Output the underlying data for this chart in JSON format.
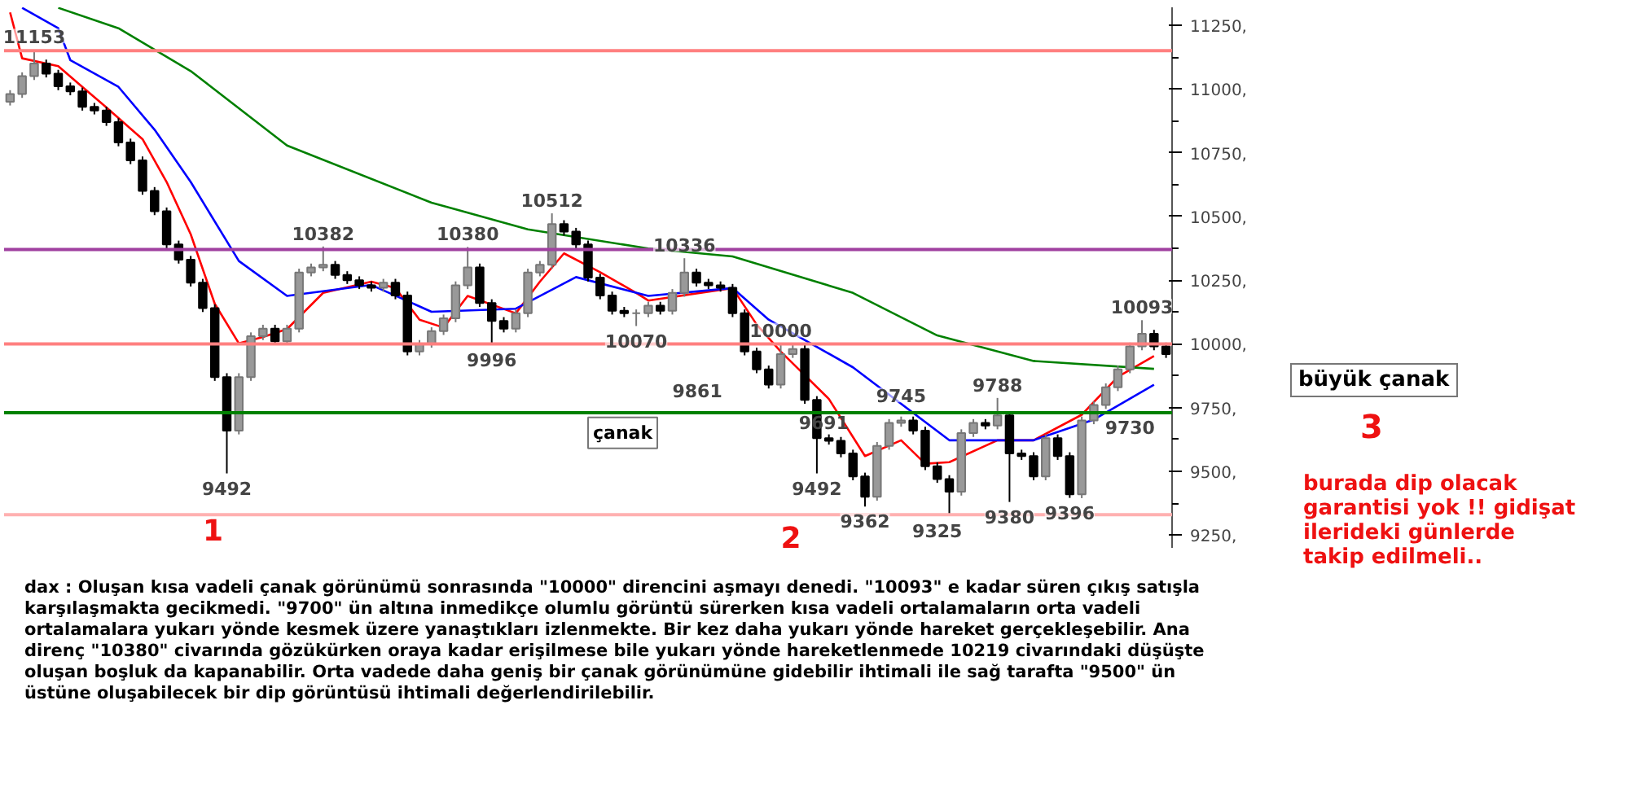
{
  "chart_data": {
    "type": "candlestick",
    "tick_labels": "y",
    "grid": false,
    "categories": [
      null,
      null,
      null,
      null,
      null,
      null,
      null,
      null,
      null,
      null,
      null,
      null,
      null,
      null,
      null,
      null,
      null,
      null,
      null,
      null,
      null,
      null,
      null,
      null,
      null,
      null,
      null,
      null,
      null,
      null,
      null,
      null,
      null,
      null,
      null,
      null,
      null,
      null,
      null,
      null,
      null,
      null,
      null,
      null,
      null,
      null,
      null,
      null,
      null,
      null,
      null,
      null,
      null,
      null,
      null,
      null,
      null,
      null,
      null,
      null,
      null,
      null,
      null,
      null,
      null,
      null,
      null,
      null,
      null,
      null,
      null,
      null,
      null,
      null,
      null,
      null,
      null,
      null,
      null,
      null,
      null,
      null,
      null,
      null,
      null,
      null,
      null,
      null,
      null,
      null,
      null,
      null,
      null,
      null,
      null,
      null,
      null
    ],
    "ohlc": [
      [
        10950,
        10995,
        10935,
        10980
      ],
      [
        10980,
        11065,
        10965,
        11050
      ],
      [
        11050,
        11153,
        11035,
        11100
      ],
      [
        11100,
        11115,
        11045,
        11060
      ],
      [
        11060,
        11075,
        10995,
        11010
      ],
      [
        11010,
        11025,
        10975,
        10990
      ],
      [
        10990,
        11005,
        10915,
        10930
      ],
      [
        10930,
        10945,
        10900,
        10915
      ],
      [
        10915,
        10930,
        10855,
        10870
      ],
      [
        10870,
        10885,
        10775,
        10790
      ],
      [
        10790,
        10805,
        10705,
        10720
      ],
      [
        10720,
        10735,
        10585,
        10600
      ],
      [
        10600,
        10615,
        10505,
        10520
      ],
      [
        10520,
        10535,
        10375,
        10390
      ],
      [
        10390,
        10405,
        10315,
        10330
      ],
      [
        10330,
        10345,
        10225,
        10240
      ],
      [
        10240,
        10255,
        10125,
        10140
      ],
      [
        10140,
        10155,
        9855,
        9870
      ],
      [
        9870,
        9885,
        9492,
        9660
      ],
      [
        9660,
        9885,
        9645,
        9870
      ],
      [
        9870,
        10045,
        9855,
        10030
      ],
      [
        10030,
        10075,
        10015,
        10060
      ],
      [
        10060,
        10075,
        9995,
        10010
      ],
      [
        10010,
        10075,
        9995,
        10060
      ],
      [
        10060,
        10295,
        10045,
        10280
      ],
      [
        10280,
        10315,
        10265,
        10300
      ],
      [
        10300,
        10382,
        10285,
        10310
      ],
      [
        10310,
        10325,
        10255,
        10270
      ],
      [
        10270,
        10285,
        10235,
        10250
      ],
      [
        10250,
        10265,
        10215,
        10230
      ],
      [
        10230,
        10245,
        10205,
        10220
      ],
      [
        10220,
        10255,
        10205,
        10240
      ],
      [
        10240,
        10255,
        10175,
        10190
      ],
      [
        10190,
        10205,
        9955,
        9970
      ],
      [
        9970,
        10015,
        9955,
        10000
      ],
      [
        10000,
        10065,
        9985,
        10050
      ],
      [
        10050,
        10115,
        10035,
        10100
      ],
      [
        10100,
        10245,
        10085,
        10230
      ],
      [
        10230,
        10380,
        10215,
        10300
      ],
      [
        10300,
        10315,
        10145,
        10160
      ],
      [
        10160,
        10175,
        9996,
        10090
      ],
      [
        10090,
        10105,
        10045,
        10060
      ],
      [
        10060,
        10135,
        10045,
        10120
      ],
      [
        10120,
        10295,
        10105,
        10280
      ],
      [
        10280,
        10325,
        10265,
        10310
      ],
      [
        10310,
        10512,
        10295,
        10470
      ],
      [
        10470,
        10485,
        10425,
        10440
      ],
      [
        10440,
        10455,
        10375,
        10390
      ],
      [
        10390,
        10405,
        10245,
        10260
      ],
      [
        10260,
        10275,
        10175,
        10190
      ],
      [
        10190,
        10205,
        10115,
        10130
      ],
      [
        10130,
        10145,
        10105,
        10120
      ],
      [
        10120,
        10135,
        10070,
        10120
      ],
      [
        10120,
        10165,
        10105,
        10150
      ],
      [
        10150,
        10165,
        10115,
        10130
      ],
      [
        10130,
        10215,
        10115,
        10200
      ],
      [
        10200,
        10336,
        10185,
        10280
      ],
      [
        10280,
        10295,
        10225,
        10240
      ],
      [
        10240,
        10255,
        10215,
        10230
      ],
      [
        10230,
        10245,
        10205,
        10220
      ],
      [
        10220,
        10235,
        10105,
        10120
      ],
      [
        10120,
        10135,
        9955,
        9970
      ],
      [
        9970,
        9985,
        9885,
        9900
      ],
      [
        9900,
        9915,
        9825,
        9840
      ],
      [
        9840,
        10000,
        9825,
        9960
      ],
      [
        9960,
        9995,
        9945,
        9980
      ],
      [
        9980,
        9995,
        9765,
        9780
      ],
      [
        9780,
        9795,
        9492,
        9630
      ],
      [
        9630,
        9645,
        9605,
        9620
      ],
      [
        9620,
        9635,
        9555,
        9570
      ],
      [
        9570,
        9585,
        9465,
        9480
      ],
      [
        9480,
        9495,
        9362,
        9400
      ],
      [
        9400,
        9615,
        9385,
        9600
      ],
      [
        9600,
        9705,
        9585,
        9690
      ],
      [
        9690,
        9715,
        9675,
        9700
      ],
      [
        9700,
        9715,
        9645,
        9660
      ],
      [
        9660,
        9675,
        9505,
        9520
      ],
      [
        9520,
        9535,
        9455,
        9470
      ],
      [
        9470,
        9485,
        9325,
        9420
      ],
      [
        9420,
        9665,
        9405,
        9650
      ],
      [
        9650,
        9705,
        9635,
        9690
      ],
      [
        9690,
        9705,
        9665,
        9680
      ],
      [
        9680,
        9788,
        9665,
        9720
      ],
      [
        9720,
        9735,
        9380,
        9570
      ],
      [
        9570,
        9585,
        9545,
        9560
      ],
      [
        9560,
        9575,
        9465,
        9480
      ],
      [
        9480,
        9645,
        9465,
        9630
      ],
      [
        9630,
        9645,
        9545,
        9560
      ],
      [
        9560,
        9575,
        9396,
        9410
      ],
      [
        9410,
        9715,
        9395,
        9700
      ],
      [
        9700,
        9775,
        9685,
        9760
      ],
      [
        9760,
        9845,
        9745,
        9830
      ],
      [
        9830,
        9915,
        9815,
        9900
      ],
      [
        9900,
        10005,
        9885,
        9990
      ],
      [
        9990,
        10093,
        9975,
        10040
      ],
      [
        10040,
        10055,
        9975,
        9990
      ],
      [
        9990,
        10005,
        9945,
        9960
      ]
    ],
    "series": [
      {
        "type": "line",
        "color": "#ff0000",
        "values": [
          11300,
          11120,
          null,
          null,
          11089,
          null,
          11008,
          null,
          10927,
          null,
          null,
          10803,
          null,
          10635,
          null,
          10430,
          null,
          10157,
          null,
          10002,
          null,
          10027,
          null,
          10058,
          null,
          null,
          10200,
          null,
          null,
          null,
          10244,
          null,
          10219,
          null,
          10095,
          null,
          10064,
          null,
          10188,
          null,
          null,
          null,
          10120,
          null,
          10244,
          null,
          10355,
          null,
          null,
          10281,
          null,
          null,
          10200,
          10170,
          null,
          null,
          null,
          null,
          null,
          null,
          10219,
          null,
          10076,
          null,
          9970,
          null,
          null,
          null,
          9784,
          null,
          null,
          9560,
          null,
          null,
          9622,
          null,
          9530,
          null,
          9536,
          null,
          null,
          null,
          9622,
          null,
          null,
          9622,
          null,
          null,
          null,
          9722,
          null,
          null,
          9871,
          null,
          null,
          9952,
          null
        ]
      },
      {
        "type": "line",
        "color": "#0000ff",
        "values": [
          null,
          11318,
          null,
          null,
          11238,
          11113,
          null,
          null,
          null,
          11008,
          null,
          null,
          10840,
          null,
          null,
          10635,
          null,
          null,
          null,
          10325,
          null,
          null,
          null,
          10188,
          null,
          null,
          null,
          null,
          null,
          null,
          10231,
          null,
          null,
          null,
          null,
          10126,
          null,
          null,
          null,
          null,
          null,
          null,
          10138,
          null,
          null,
          null,
          null,
          10262,
          null,
          null,
          null,
          null,
          null,
          10188,
          null,
          null,
          null,
          null,
          null,
          null,
          10219,
          null,
          null,
          10095,
          null,
          null,
          null,
          null,
          null,
          null,
          9908,
          null,
          null,
          null,
          null,
          null,
          null,
          null,
          9622,
          null,
          null,
          null,
          null,
          null,
          null,
          9622,
          null,
          null,
          null,
          null,
          9703,
          null,
          null,
          null,
          null,
          9840,
          null
        ]
      },
      {
        "type": "line",
        "color": "#008000",
        "values": [
          null,
          null,
          null,
          null,
          11318,
          null,
          null,
          null,
          null,
          11238,
          null,
          null,
          null,
          null,
          null,
          11070,
          null,
          null,
          null,
          null,
          null,
          null,
          null,
          10778,
          null,
          null,
          null,
          null,
          null,
          null,
          null,
          null,
          null,
          null,
          null,
          10554,
          null,
          null,
          null,
          null,
          null,
          null,
          null,
          10449,
          null,
          null,
          null,
          null,
          null,
          null,
          null,
          null,
          null,
          10374,
          null,
          null,
          null,
          null,
          null,
          null,
          10343,
          null,
          null,
          null,
          null,
          null,
          null,
          null,
          null,
          null,
          10200,
          null,
          null,
          null,
          null,
          null,
          null,
          10033,
          null,
          null,
          null,
          null,
          null,
          null,
          null,
          9933,
          null,
          null,
          null,
          null,
          null,
          null,
          null,
          null,
          null,
          9902,
          null
        ]
      }
    ],
    "marker": "none",
    "line_style": "solid",
    "ylim": [
      9200,
      11320
    ],
    "yticks": [
      {
        "value": 9250,
        "label": "9250,"
      },
      {
        "value": 9500,
        "label": "9500,"
      },
      {
        "value": 9750,
        "label": "9750,"
      },
      {
        "value": 10000,
        "label": "10000,"
      },
      {
        "value": 10250,
        "label": "10250,"
      },
      {
        "value": 10500,
        "label": "10500,"
      },
      {
        "value": 10750,
        "label": "10750,"
      },
      {
        "value": 11000,
        "label": "11000,"
      },
      {
        "value": 11250,
        "label": "11250,"
      }
    ],
    "ref_lines": [
      {
        "axis": "y",
        "value": 11150,
        "color": "#ff8080"
      },
      {
        "axis": "y",
        "value": 10370,
        "color": "#a040a0"
      },
      {
        "axis": "y",
        "value": 10000,
        "color": "#ff8080"
      },
      {
        "axis": "y",
        "value": 9730,
        "color": "#008000"
      },
      {
        "axis": "y",
        "value": 9330,
        "color": "#ffb0b0"
      }
    ],
    "annotations": [
      {
        "text": "11153",
        "y": 11153
      },
      {
        "text": "10382",
        "y": 10382
      },
      {
        "text": "10380",
        "y": 10380
      },
      {
        "text": "10512",
        "y": 10512
      },
      {
        "text": "10336",
        "y": 10336
      },
      {
        "text": "9492",
        "y": 9492
      },
      {
        "text": "9996",
        "y": 9996
      },
      {
        "text": "10070",
        "y": 10070
      },
      {
        "text": "10000",
        "y": 10000
      },
      {
        "text": "10093",
        "y": 10093
      },
      {
        "text": "9745",
        "y": 9745
      },
      {
        "text": "9788",
        "y": 9788
      },
      {
        "text": "9730",
        "y": 9730
      },
      {
        "text": "9492",
        "y": 9492
      },
      {
        "text": "9362",
        "y": 9362
      },
      {
        "text": "9325",
        "y": 9325
      },
      {
        "text": "9380",
        "y": 9380
      },
      {
        "text": "9396",
        "y": 9396
      },
      "çanak",
      "büyük çanak",
      "1",
      "2",
      "3",
      "burada dip olacak garantisi yok !! gidişat ilerideki günlerde takip edilmeli..",
      "9861",
      "9691",
      "dax : Oluşan kısa vadeli çanak görünümü sonrasında \"10000\" direncini aşmayı denedi. \"10093\" e kadar süren çıkış satışla karşılaşmakta gecikmedi. \"9700\" ün altına inmedikçe olumlu görüntü sürerken kısa vadeli ortalamaların orta vadeli ortalamalara yukarı yönde kesmek üzere yanaştıkları izlenmekte. Bir kez daha yukarı yönde hareket gerçekleşebilir. Ana direnç \"10380\" civarında gözükürken oraya kadar erişilmese bile yukarı yönde hareketlenmede 10219 civarındaki düşüşte oluşan boşluk da kapanabilir. Orta vadede daha geniş bir çanak görünümüne gidebilir ihtimali ile sağ tarafta \"9500\" ün üstüne oluşabilecek bir dip görüntüsü ihtimali değerlendirilebilir."
    ]
  }
}
